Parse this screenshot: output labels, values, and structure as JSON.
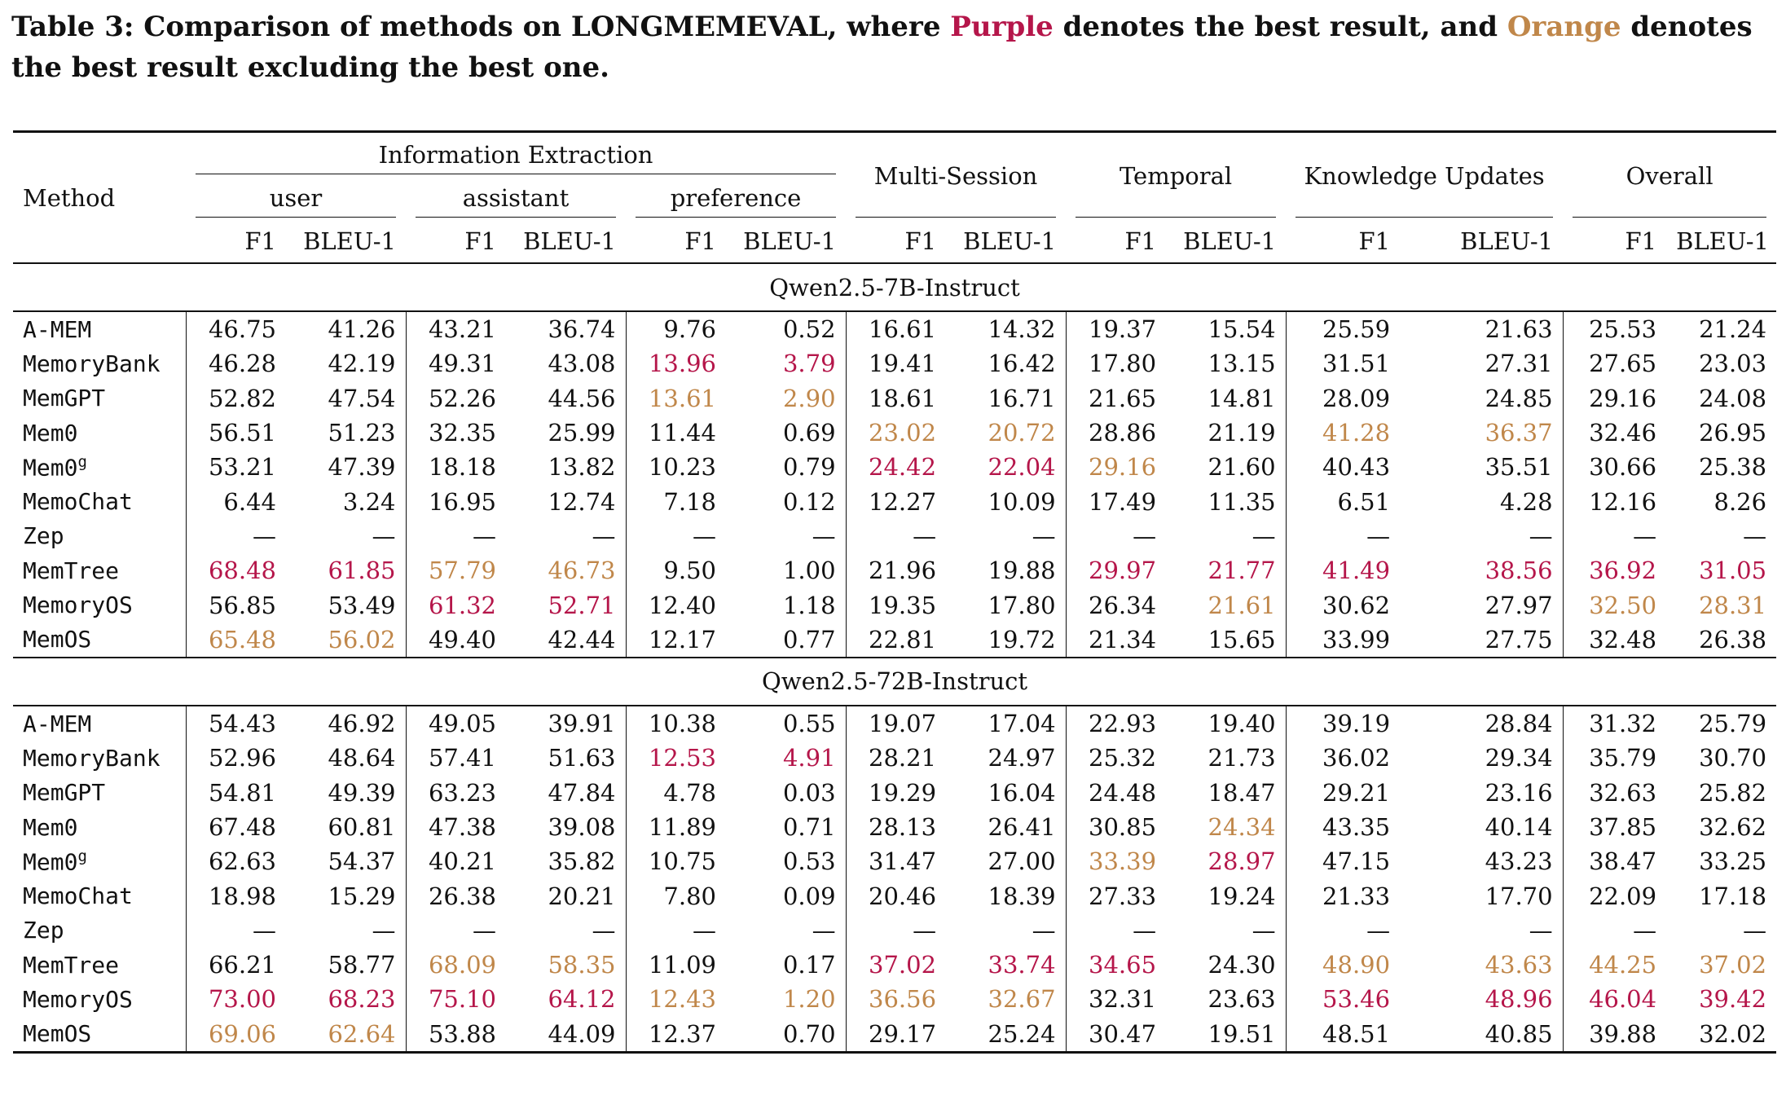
{
  "caption": {
    "prefix": "Table 3: Comparison of methods on LONGMEMEVAL, where ",
    "purple_word": "Purple",
    "middle": " denotes the best result, and ",
    "orange_word": "Orange",
    "suffix": " denotes the best result excluding the best one."
  },
  "colors": {
    "best": "#b5164a",
    "second": "#c0874a"
  },
  "header": {
    "method": "Method",
    "info_extraction": "Information Extraction",
    "user": "user",
    "assistant": "assistant",
    "preference": "preference",
    "multi_session": "Multi-Session",
    "temporal": "Temporal",
    "knowledge_updates": "Knowledge Updates",
    "overall": "Overall",
    "f1": "F1",
    "bleu": "BLEU-1"
  },
  "sections": [
    {
      "model": "Qwen2.5-7B-Instruct",
      "rows": [
        {
          "method": "A-MEM",
          "sup": "",
          "values": [
            "46.75",
            "41.26",
            "43.21",
            "36.74",
            "9.76",
            "0.52",
            "16.61",
            "14.32",
            "19.37",
            "15.54",
            "25.59",
            "21.63",
            "25.53",
            "21.24"
          ],
          "marks": [
            "",
            "",
            "",
            "",
            "",
            "",
            "",
            "",
            "",
            "",
            "",
            "",
            "",
            ""
          ]
        },
        {
          "method": "MemoryBank",
          "sup": "",
          "values": [
            "46.28",
            "42.19",
            "49.31",
            "43.08",
            "13.96",
            "3.79",
            "19.41",
            "16.42",
            "17.80",
            "13.15",
            "31.51",
            "27.31",
            "27.65",
            "23.03"
          ],
          "marks": [
            "",
            "",
            "",
            "",
            "best",
            "best",
            "",
            "",
            "",
            "",
            "",
            "",
            "",
            ""
          ]
        },
        {
          "method": "MemGPT",
          "sup": "",
          "values": [
            "52.82",
            "47.54",
            "52.26",
            "44.56",
            "13.61",
            "2.90",
            "18.61",
            "16.71",
            "21.65",
            "14.81",
            "28.09",
            "24.85",
            "29.16",
            "24.08"
          ],
          "marks": [
            "",
            "",
            "",
            "",
            "second",
            "second",
            "",
            "",
            "",
            "",
            "",
            "",
            "",
            ""
          ]
        },
        {
          "method": "Mem0",
          "sup": "",
          "values": [
            "56.51",
            "51.23",
            "32.35",
            "25.99",
            "11.44",
            "0.69",
            "23.02",
            "20.72",
            "28.86",
            "21.19",
            "41.28",
            "36.37",
            "32.46",
            "26.95"
          ],
          "marks": [
            "",
            "",
            "",
            "",
            "",
            "",
            "second",
            "second",
            "",
            "",
            "second",
            "second",
            "",
            ""
          ]
        },
        {
          "method": "Mem0",
          "sup": "g",
          "values": [
            "53.21",
            "47.39",
            "18.18",
            "13.82",
            "10.23",
            "0.79",
            "24.42",
            "22.04",
            "29.16",
            "21.60",
            "40.43",
            "35.51",
            "30.66",
            "25.38"
          ],
          "marks": [
            "",
            "",
            "",
            "",
            "",
            "",
            "best",
            "best",
            "second",
            "",
            "",
            "",
            "",
            ""
          ]
        },
        {
          "method": "MemoChat",
          "sup": "",
          "values": [
            "6.44",
            "3.24",
            "16.95",
            "12.74",
            "7.18",
            "0.12",
            "12.27",
            "10.09",
            "17.49",
            "11.35",
            "6.51",
            "4.28",
            "12.16",
            "8.26"
          ],
          "marks": [
            "",
            "",
            "",
            "",
            "",
            "",
            "",
            "",
            "",
            "",
            "",
            "",
            "",
            ""
          ]
        },
        {
          "method": "Zep",
          "sup": "",
          "values": [
            "—",
            "—",
            "—",
            "—",
            "—",
            "—",
            "—",
            "—",
            "—",
            "—",
            "—",
            "—",
            "—",
            "—"
          ],
          "marks": [
            "",
            "",
            "",
            "",
            "",
            "",
            "",
            "",
            "",
            "",
            "",
            "",
            "",
            ""
          ]
        },
        {
          "method": "MemTree",
          "sup": "",
          "values": [
            "68.48",
            "61.85",
            "57.79",
            "46.73",
            "9.50",
            "1.00",
            "21.96",
            "19.88",
            "29.97",
            "21.77",
            "41.49",
            "38.56",
            "36.92",
            "31.05"
          ],
          "marks": [
            "best",
            "best",
            "second",
            "second",
            "",
            "",
            "",
            "",
            "best",
            "best",
            "best",
            "best",
            "best",
            "best"
          ]
        },
        {
          "method": "MemoryOS",
          "sup": "",
          "values": [
            "56.85",
            "53.49",
            "61.32",
            "52.71",
            "12.40",
            "1.18",
            "19.35",
            "17.80",
            "26.34",
            "21.61",
            "30.62",
            "27.97",
            "32.50",
            "28.31"
          ],
          "marks": [
            "",
            "",
            "best",
            "best",
            "",
            "",
            "",
            "",
            "",
            "second",
            "",
            "",
            "second",
            "second"
          ]
        },
        {
          "method": "MemOS",
          "sup": "",
          "values": [
            "65.48",
            "56.02",
            "49.40",
            "42.44",
            "12.17",
            "0.77",
            "22.81",
            "19.72",
            "21.34",
            "15.65",
            "33.99",
            "27.75",
            "32.48",
            "26.38"
          ],
          "marks": [
            "second",
            "second",
            "",
            "",
            "",
            "",
            "",
            "",
            "",
            "",
            "",
            "",
            "",
            ""
          ]
        }
      ]
    },
    {
      "model": "Qwen2.5-72B-Instruct",
      "rows": [
        {
          "method": "A-MEM",
          "sup": "",
          "values": [
            "54.43",
            "46.92",
            "49.05",
            "39.91",
            "10.38",
            "0.55",
            "19.07",
            "17.04",
            "22.93",
            "19.40",
            "39.19",
            "28.84",
            "31.32",
            "25.79"
          ],
          "marks": [
            "",
            "",
            "",
            "",
            "",
            "",
            "",
            "",
            "",
            "",
            "",
            "",
            "",
            ""
          ]
        },
        {
          "method": "MemoryBank",
          "sup": "",
          "values": [
            "52.96",
            "48.64",
            "57.41",
            "51.63",
            "12.53",
            "4.91",
            "28.21",
            "24.97",
            "25.32",
            "21.73",
            "36.02",
            "29.34",
            "35.79",
            "30.70"
          ],
          "marks": [
            "",
            "",
            "",
            "",
            "best",
            "best",
            "",
            "",
            "",
            "",
            "",
            "",
            "",
            ""
          ]
        },
        {
          "method": "MemGPT",
          "sup": "",
          "values": [
            "54.81",
            "49.39",
            "63.23",
            "47.84",
            "4.78",
            "0.03",
            "19.29",
            "16.04",
            "24.48",
            "18.47",
            "29.21",
            "23.16",
            "32.63",
            "25.82"
          ],
          "marks": [
            "",
            "",
            "",
            "",
            "",
            "",
            "",
            "",
            "",
            "",
            "",
            "",
            "",
            ""
          ]
        },
        {
          "method": "Mem0",
          "sup": "",
          "values": [
            "67.48",
            "60.81",
            "47.38",
            "39.08",
            "11.89",
            "0.71",
            "28.13",
            "26.41",
            "30.85",
            "24.34",
            "43.35",
            "40.14",
            "37.85",
            "32.62"
          ],
          "marks": [
            "",
            "",
            "",
            "",
            "",
            "",
            "",
            "",
            "",
            "second",
            "",
            "",
            "",
            ""
          ]
        },
        {
          "method": "Mem0",
          "sup": "g",
          "values": [
            "62.63",
            "54.37",
            "40.21",
            "35.82",
            "10.75",
            "0.53",
            "31.47",
            "27.00",
            "33.39",
            "28.97",
            "47.15",
            "43.23",
            "38.47",
            "33.25"
          ],
          "marks": [
            "",
            "",
            "",
            "",
            "",
            "",
            "",
            "",
            "second",
            "best",
            "",
            "",
            "",
            ""
          ]
        },
        {
          "method": "MemoChat",
          "sup": "",
          "values": [
            "18.98",
            "15.29",
            "26.38",
            "20.21",
            "7.80",
            "0.09",
            "20.46",
            "18.39",
            "27.33",
            "19.24",
            "21.33",
            "17.70",
            "22.09",
            "17.18"
          ],
          "marks": [
            "",
            "",
            "",
            "",
            "",
            "",
            "",
            "",
            "",
            "",
            "",
            "",
            "",
            ""
          ]
        },
        {
          "method": "Zep",
          "sup": "",
          "values": [
            "—",
            "—",
            "—",
            "—",
            "—",
            "—",
            "—",
            "—",
            "—",
            "—",
            "—",
            "—",
            "—",
            "—"
          ],
          "marks": [
            "",
            "",
            "",
            "",
            "",
            "",
            "",
            "",
            "",
            "",
            "",
            "",
            "",
            ""
          ]
        },
        {
          "method": "MemTree",
          "sup": "",
          "values": [
            "66.21",
            "58.77",
            "68.09",
            "58.35",
            "11.09",
            "0.17",
            "37.02",
            "33.74",
            "34.65",
            "24.30",
            "48.90",
            "43.63",
            "44.25",
            "37.02"
          ],
          "marks": [
            "",
            "",
            "second",
            "second",
            "",
            "",
            "best",
            "best",
            "best",
            "",
            "second",
            "second",
            "second",
            "second"
          ]
        },
        {
          "method": "MemoryOS",
          "sup": "",
          "values": [
            "73.00",
            "68.23",
            "75.10",
            "64.12",
            "12.43",
            "1.20",
            "36.56",
            "32.67",
            "32.31",
            "23.63",
            "53.46",
            "48.96",
            "46.04",
            "39.42"
          ],
          "marks": [
            "best",
            "best",
            "best",
            "best",
            "second",
            "second",
            "second",
            "second",
            "",
            "",
            "best",
            "best",
            "best",
            "best"
          ]
        },
        {
          "method": "MemOS",
          "sup": "",
          "values": [
            "69.06",
            "62.64",
            "53.88",
            "44.09",
            "12.37",
            "0.70",
            "29.17",
            "25.24",
            "30.47",
            "19.51",
            "48.51",
            "40.85",
            "39.88",
            "32.02"
          ],
          "marks": [
            "second",
            "second",
            "",
            "",
            "",
            "",
            "",
            "",
            "",
            "",
            "",
            "",
            "",
            ""
          ]
        }
      ]
    }
  ]
}
